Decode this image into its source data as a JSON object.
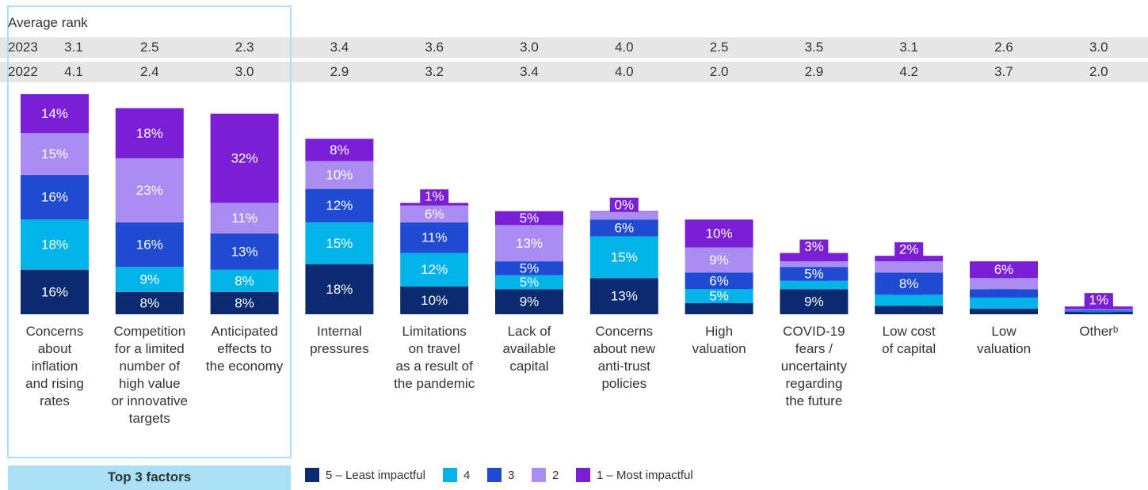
{
  "chart_data": {
    "type": "stacked_bar",
    "rank_table": {
      "title": "Average rank",
      "rows": [
        {
          "label": "2023",
          "values": [
            "3.1",
            "2.5",
            "2.3",
            "3.4",
            "3.6",
            "3.0",
            "4.0",
            "2.5",
            "3.5",
            "3.1",
            "2.6",
            "3.0"
          ]
        },
        {
          "label": "2022",
          "values": [
            "4.1",
            "2.4",
            "3.0",
            "2.9",
            "3.2",
            "3.4",
            "4.0",
            "2.0",
            "2.9",
            "4.2",
            "3.7",
            "2.0"
          ]
        }
      ]
    },
    "highlight_label": "Top 3 factors",
    "categories": [
      "Concerns\nabout\ninflation\nand rising\nrates",
      "Competition\nfor a limited\nnumber of\nhigh value\nor innovative\ntargets",
      "Anticipated\neffects to\nthe economy",
      "Internal\npressures",
      "Limitations\non travel\nas a result of\nthe pandemic",
      "Lack of\navailable\ncapital",
      "Concerns\nabout new\nanti-trust\npolicies",
      "High\nvaluation",
      "COVID-19\nfears /\nuncertainty\nregarding\nthe future",
      "Low cost\nof capital",
      "Low\nvaluation",
      "Otherᵇ"
    ],
    "series": [
      {
        "name": "5 – Least impactful",
        "color": "#0b2a6f",
        "values": [
          16,
          8,
          8,
          18,
          10,
          9,
          13,
          4,
          9,
          3,
          2,
          1
        ],
        "value_labels": [
          "16%",
          "8%",
          "8%",
          "18%",
          "10%",
          "9%",
          "13%",
          "4%",
          "9%",
          "3%",
          "2%",
          "1%"
        ]
      },
      {
        "name": "4",
        "color": "#00b3e8",
        "values": [
          18,
          9,
          8,
          15,
          12,
          5,
          15,
          5,
          3,
          4,
          4,
          0
        ],
        "value_labels": [
          "18%",
          "9%",
          "8%",
          "15%",
          "12%",
          "5%",
          "15%",
          "5%",
          "3%",
          "4%",
          "4%",
          "0%"
        ]
      },
      {
        "name": "3",
        "color": "#1e4bd2",
        "values": [
          16,
          16,
          13,
          12,
          11,
          5,
          6,
          6,
          5,
          8,
          3,
          0.4
        ],
        "value_labels": [
          "16%",
          "16%",
          "13%",
          "12%",
          "11%",
          "5%",
          "6%",
          "6%",
          "5%",
          "8%",
          "3%",
          null
        ]
      },
      {
        "name": "2",
        "color": "#a98df0",
        "values": [
          15,
          23,
          11,
          10,
          6,
          13,
          3,
          9,
          2,
          4,
          4,
          0.4
        ],
        "value_labels": [
          "15%",
          "23%",
          "11%",
          "10%",
          "6%",
          "13%",
          "3%",
          "9%",
          "2%",
          "4%",
          "4%",
          null
        ]
      },
      {
        "name": "1 – Most impactful",
        "color": "#7b1fd6",
        "values": [
          14,
          18,
          32,
          8,
          1,
          5,
          0,
          10,
          3,
          2,
          6,
          1
        ],
        "value_labels": [
          "14%",
          "18%",
          "32%",
          "8%",
          "1%",
          "5%",
          "0%",
          "10%",
          "3%",
          "2%",
          "6%",
          "1%"
        ]
      }
    ]
  }
}
